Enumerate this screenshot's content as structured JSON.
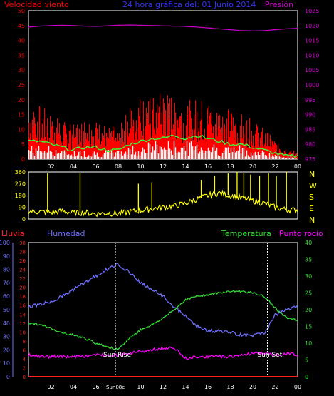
{
  "colors": {
    "background": "#000000",
    "frame": "#ffffff",
    "wind": "#ff0000",
    "gust_envelope": "#33ff33",
    "average_wind": "#ffffff",
    "pressure": "#cc00cc",
    "direction": "#ffff00",
    "rain": "#ff2020",
    "humidity": "#6f6fff",
    "temperature": "#33dd33",
    "dewpoint": "#ff00ff",
    "sunline": "#ffffff"
  },
  "header": {
    "wind_label": "Velocidad viento",
    "center_title": "24 hora gráfica del: 01 Junio 2014",
    "pressure_label": "Presión"
  },
  "lower_header": {
    "rain_label": "Lluvia",
    "humidity_label": "Humedad",
    "temperature_label": "Temperatura",
    "dewpoint_label": "Punto rocío"
  },
  "compass": [
    "N",
    "W",
    "S",
    "E",
    "N"
  ],
  "sun_labels": {
    "rise": "Sun Rise",
    "set": "Sun Set",
    "sunrise_axis": "Sun08c"
  },
  "chart_data": [
    {
      "type": "line",
      "title": "24 hora gráfica del: 01 Junio 2014",
      "x_ticks": [
        "02",
        "04",
        "06",
        "08",
        "10",
        "12",
        "14",
        "16",
        "18",
        "20",
        "22",
        "00"
      ],
      "y_left_label": "Velocidad viento",
      "y_left_ticks": [
        0,
        5,
        10,
        15,
        20,
        25,
        30,
        35,
        40,
        45,
        50
      ],
      "y_left_lim": [
        0,
        50
      ],
      "y_right_label": "Presión",
      "y_right_ticks": [
        975,
        980,
        985,
        990,
        995,
        1000,
        1005,
        1010,
        1015,
        1020,
        1025
      ],
      "y_right_lim": [
        975,
        1025
      ],
      "x_hours": [
        0,
        1,
        2,
        3,
        4,
        5,
        6,
        7,
        8,
        9,
        10,
        11,
        12,
        13,
        14,
        15,
        16,
        17,
        18,
        19,
        20,
        21,
        22,
        23,
        24
      ],
      "series": [
        {
          "name": "Velocidad viento",
          "axis": "left",
          "values": [
            15,
            14,
            12,
            10,
            9,
            11,
            10,
            9,
            8,
            14,
            17,
            16,
            18,
            17,
            15,
            16,
            15,
            14,
            13,
            12,
            10,
            8,
            5,
            3,
            2
          ]
        },
        {
          "axis": "left",
          "values": [
            6,
            6,
            5,
            4,
            3,
            4,
            4,
            3,
            3,
            5,
            6,
            7,
            7,
            8,
            7,
            8,
            7,
            6,
            5,
            5,
            4,
            3,
            2,
            1,
            1
          ]
        },
        {
          "axis": "left",
          "values": [
            3,
            3,
            3,
            2,
            2,
            2,
            2,
            2,
            2,
            3,
            3,
            4,
            4,
            4,
            4,
            4,
            4,
            3,
            3,
            3,
            2,
            2,
            1,
            1,
            0
          ]
        },
        {
          "name": "Presión",
          "axis": "right",
          "values": [
            1019.5,
            1019.8,
            1020.0,
            1020.1,
            1020.0,
            1019.8,
            1019.7,
            1019.9,
            1020.1,
            1020.2,
            1020.1,
            1020.0,
            1019.9,
            1019.8,
            1019.7,
            1019.5,
            1019.2,
            1018.9,
            1018.6,
            1018.3,
            1018.2,
            1018.3,
            1018.6,
            1018.9,
            1019.1
          ]
        }
      ]
    },
    {
      "type": "scatter",
      "y_ticks": [
        0,
        90,
        180,
        270,
        360
      ],
      "y_lim": [
        0,
        360
      ],
      "x_hours": [
        0,
        1,
        2,
        3,
        4,
        5,
        6,
        7,
        8,
        9,
        10,
        11,
        12,
        13,
        14,
        15,
        16,
        17,
        18,
        19,
        20,
        21,
        22,
        23,
        24
      ],
      "series": [
        {
          "name": "direction",
          "values": [
            60,
            55,
            50,
            60,
            45,
            50,
            40,
            45,
            40,
            55,
            65,
            80,
            90,
            100,
            120,
            150,
            180,
            200,
            180,
            160,
            140,
            120,
            90,
            70,
            70
          ]
        }
      ],
      "spikes": [
        {
          "hour": 1.7,
          "value": 350
        },
        {
          "hour": 4.6,
          "value": 350
        },
        {
          "hour": 9.8,
          "value": 270
        },
        {
          "hour": 11.0,
          "value": 280
        },
        {
          "hour": 15.4,
          "value": 300
        },
        {
          "hour": 16.6,
          "value": 330
        },
        {
          "hour": 17.8,
          "value": 350
        },
        {
          "hour": 18.6,
          "value": 360
        },
        {
          "hour": 19.2,
          "value": 350
        },
        {
          "hour": 19.8,
          "value": 340
        },
        {
          "hour": 20.6,
          "value": 330
        },
        {
          "hour": 21.4,
          "value": 350
        },
        {
          "hour": 22.1,
          "value": 330
        },
        {
          "hour": 23.0,
          "value": 360
        }
      ]
    },
    {
      "type": "line",
      "x_ticks": [
        "02",
        "04",
        "06",
        "08",
        "10",
        "12",
        "14",
        "16",
        "18",
        "20",
        "22",
        "00"
      ],
      "humidity_ticks": [
        0,
        10,
        20,
        30,
        40,
        50,
        60,
        70,
        80,
        90,
        100
      ],
      "humidity_lim": [
        0,
        100
      ],
      "rain_ticks": [
        0,
        2,
        4,
        6,
        8,
        10,
        12,
        14,
        16,
        18,
        20,
        22,
        24,
        26,
        28,
        30
      ],
      "rain_lim": [
        0,
        30
      ],
      "temp_ticks": [
        0,
        5,
        10,
        15,
        20,
        25,
        30,
        35,
        40
      ],
      "temp_lim": [
        0,
        40
      ],
      "x_hours": [
        0,
        1,
        2,
        3,
        4,
        5,
        6,
        7,
        8,
        9,
        10,
        11,
        12,
        13,
        14,
        15,
        16,
        17,
        18,
        19,
        20,
        21,
        22,
        23,
        24
      ],
      "series": [
        {
          "name": "Humedad",
          "values": [
            52,
            54,
            56,
            60,
            65,
            70,
            75,
            80,
            84,
            78,
            70,
            65,
            60,
            52,
            45,
            38,
            34,
            34,
            33,
            31,
            31,
            32,
            46,
            50,
            52
          ]
        },
        {
          "name": "Temperatura",
          "values": [
            16.0,
            15.5,
            14.5,
            13.0,
            12.5,
            11.5,
            10.0,
            9.0,
            8.0,
            11.5,
            14.0,
            15.5,
            17.5,
            20.0,
            23.0,
            24.0,
            24.5,
            25.0,
            25.5,
            25.5,
            25.0,
            24.0,
            20.5,
            17.5,
            17.0
          ]
        },
        {
          "name": "Punto rocío",
          "values": [
            6.5,
            6.0,
            6.0,
            6.0,
            6.0,
            6.0,
            6.5,
            6.5,
            6.5,
            7.0,
            7.5,
            8.0,
            8.5,
            8.5,
            5.5,
            6.0,
            6.0,
            6.0,
            6.0,
            6.5,
            7.0,
            7.0,
            6.5,
            7.0,
            6.5
          ]
        },
        {
          "name": "Lluvia",
          "values": [
            0,
            0,
            0,
            0,
            0,
            0,
            0,
            0,
            0,
            0,
            0,
            0,
            0,
            0,
            0,
            0,
            0,
            0,
            0,
            0,
            0,
            0,
            0,
            0,
            0
          ]
        }
      ],
      "sunrise_hour": 7.75,
      "sunset_hour": 21.3
    }
  ]
}
